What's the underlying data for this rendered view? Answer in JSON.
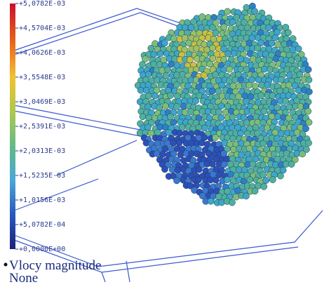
{
  "legend": {
    "ticks": [
      "+5,0782E-03",
      "+4,5704E-03",
      "+4,0626E-03",
      "+3,5548E-03",
      "+3,0469E-03",
      "+2,5391E-03",
      "+2,0313E-03",
      "+1,5235E-03",
      "+1,0156E-03",
      "+5,0782E-04",
      "+0,0000E+00"
    ],
    "title": "Vlocy magnitude",
    "subtitle": "None"
  }
}
